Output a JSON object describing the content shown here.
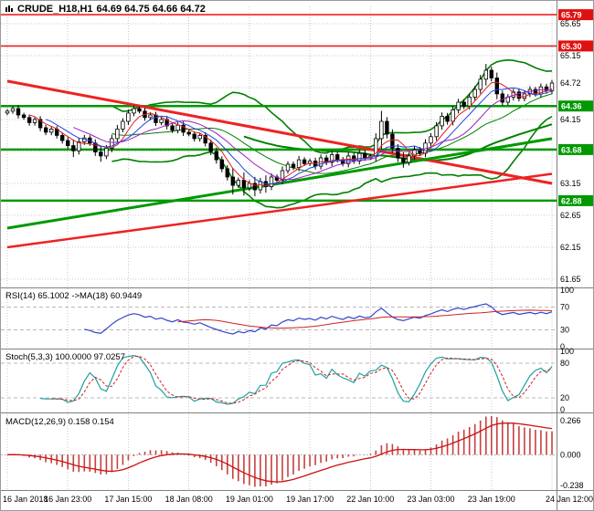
{
  "title": {
    "symbol": "CRUDE_H18,H1",
    "ohlc": "64.69 64.75 64.66 64.72"
  },
  "colors": {
    "background": "#ffffff",
    "grid": "#c9c9c9",
    "panel_level": "#b8b8b8",
    "separator": "#808080",
    "bull": "#ffffff",
    "bear": "#000000",
    "candle_border": "#000000",
    "bands_green": "#008000",
    "support_green": "#009900",
    "resistance_red": "#ee2222",
    "tag_red": "#e01010",
    "tag_green": "#009900",
    "ma_fast": "#dd2222",
    "ma_mid": "#2244dd",
    "ma_slow": "#9922bb",
    "rsi_line": "#3344cc",
    "rsi_ma": "#cc2222",
    "stoch_k": "#1fa0a0",
    "stoch_d": "#cc2222",
    "macd_hist": "#c84040",
    "macd_signal": "#cc1111",
    "axis_text": "#000000"
  },
  "chart_data": {
    "type": "candlestick",
    "symbol": "CRUDE_H18,H1",
    "timeframe": "H1",
    "title": "CRUDE_H18,H1 64.69 64.75 64.66 64.72",
    "current_price": 64.72,
    "current_ohlc": {
      "open": 64.69,
      "high": 64.75,
      "low": 64.66,
      "close": 64.72
    },
    "y_min": 61.55,
    "y_max": 65.92,
    "y_grid": {
      "start": 61.65,
      "end": 65.65,
      "step": 0.5
    },
    "y_ticks": [
      65.65,
      65.15,
      64.72,
      64.15,
      63.15,
      62.65,
      62.15,
      61.65
    ],
    "x_ticks": [
      "16 Jan 2018",
      "16 Jan 23:00",
      "17 Jan 15:00",
      "18 Jan 08:00",
      "19 Jan 01:00",
      "19 Jan 17:00",
      "22 Jan 10:00",
      "23 Jan 03:00",
      "23 Jan 19:00",
      "24 Jan 12:00"
    ],
    "x_tick_indices": [
      0,
      11,
      22,
      33,
      44,
      55,
      66,
      77,
      88,
      99
    ],
    "open_first": 64.25,
    "closes": [
      64.28,
      64.32,
      64.22,
      64.18,
      64.1,
      64.15,
      64.02,
      63.95,
      64.0,
      63.9,
      63.82,
      63.74,
      63.66,
      63.8,
      63.86,
      63.78,
      63.64,
      63.58,
      63.7,
      63.85,
      64.0,
      64.12,
      64.25,
      64.32,
      64.28,
      64.18,
      64.22,
      64.1,
      64.15,
      64.05,
      63.98,
      64.06,
      63.95,
      63.92,
      63.85,
      63.9,
      63.78,
      63.65,
      63.52,
      63.38,
      63.25,
      63.12,
      63.2,
      63.08,
      63.15,
      63.05,
      63.18,
      63.1,
      63.25,
      63.2,
      63.35,
      63.45,
      63.4,
      63.52,
      63.46,
      63.5,
      63.42,
      63.55,
      63.48,
      63.6,
      63.52,
      63.46,
      63.58,
      63.5,
      63.62,
      63.55,
      63.58,
      63.85,
      64.12,
      63.92,
      63.7,
      63.55,
      63.48,
      63.58,
      63.68,
      63.62,
      63.78,
      63.88,
      64.05,
      64.2,
      64.12,
      64.3,
      64.42,
      64.36,
      64.5,
      64.62,
      64.78,
      64.92,
      64.8,
      64.55,
      64.42,
      64.5,
      64.58,
      64.48,
      64.55,
      64.62,
      64.55,
      64.66,
      64.6,
      64.72
    ],
    "wick_base": 0.05,
    "wick_spikes": {
      "12": 0.1,
      "17": 0.08,
      "41": 0.15,
      "43": 0.12,
      "45": 0.1,
      "47": 0.08,
      "68": 0.14,
      "72": 0.08,
      "87": 0.08
    },
    "levels": {
      "resistance_red": [
        65.79,
        65.3
      ],
      "support_green": [
        64.36,
        63.68,
        62.88
      ]
    },
    "trendlines": [
      {
        "name": "descending-red-trendline",
        "color": "#ee2222",
        "width": 3,
        "from": [
          0,
          64.75
        ],
        "to": [
          99,
          63.15
        ]
      },
      {
        "name": "ascending-red-trendline",
        "color": "#ee2222",
        "width": 2.5,
        "from": [
          0,
          62.15
        ],
        "to": [
          99,
          63.3
        ]
      },
      {
        "name": "ascending-green-trendline",
        "color": "#009900",
        "width": 3,
        "from": [
          0,
          62.45
        ],
        "to": [
          99,
          63.85
        ]
      }
    ],
    "overlays": {
      "bollinger": {
        "period": 20,
        "deviation": 2
      },
      "slow_ma_period": 44,
      "fast_ma_periods": [
        5,
        8,
        13
      ]
    },
    "indicators": {
      "rsi": {
        "label": "RSI(14) 65.1002 ->MA(18) 60.9449",
        "period": 14,
        "ma_period": 18,
        "last": 65.1002,
        "ma_last": 60.9449,
        "levels": [
          70,
          30
        ],
        "y_ticks": [
          "100",
          "70",
          "30",
          "0"
        ]
      },
      "stoch": {
        "label": "Stoch(5,3,3) 100.0000 97.0257",
        "k": 5,
        "slowing": 3,
        "d": 3,
        "last": 100.0,
        "signal_last": 97.0257,
        "levels": [
          80,
          20
        ],
        "y_ticks": [
          "100",
          "80",
          "20",
          "0"
        ]
      },
      "macd": {
        "label": "MACD(12,26,9) 0.158 0.154",
        "fast": 12,
        "slow": 26,
        "signal": 9,
        "last": 0.158,
        "signal_last": 0.154,
        "y_ticks": [
          "0.266",
          "0.000",
          "-0.238"
        ]
      }
    }
  }
}
